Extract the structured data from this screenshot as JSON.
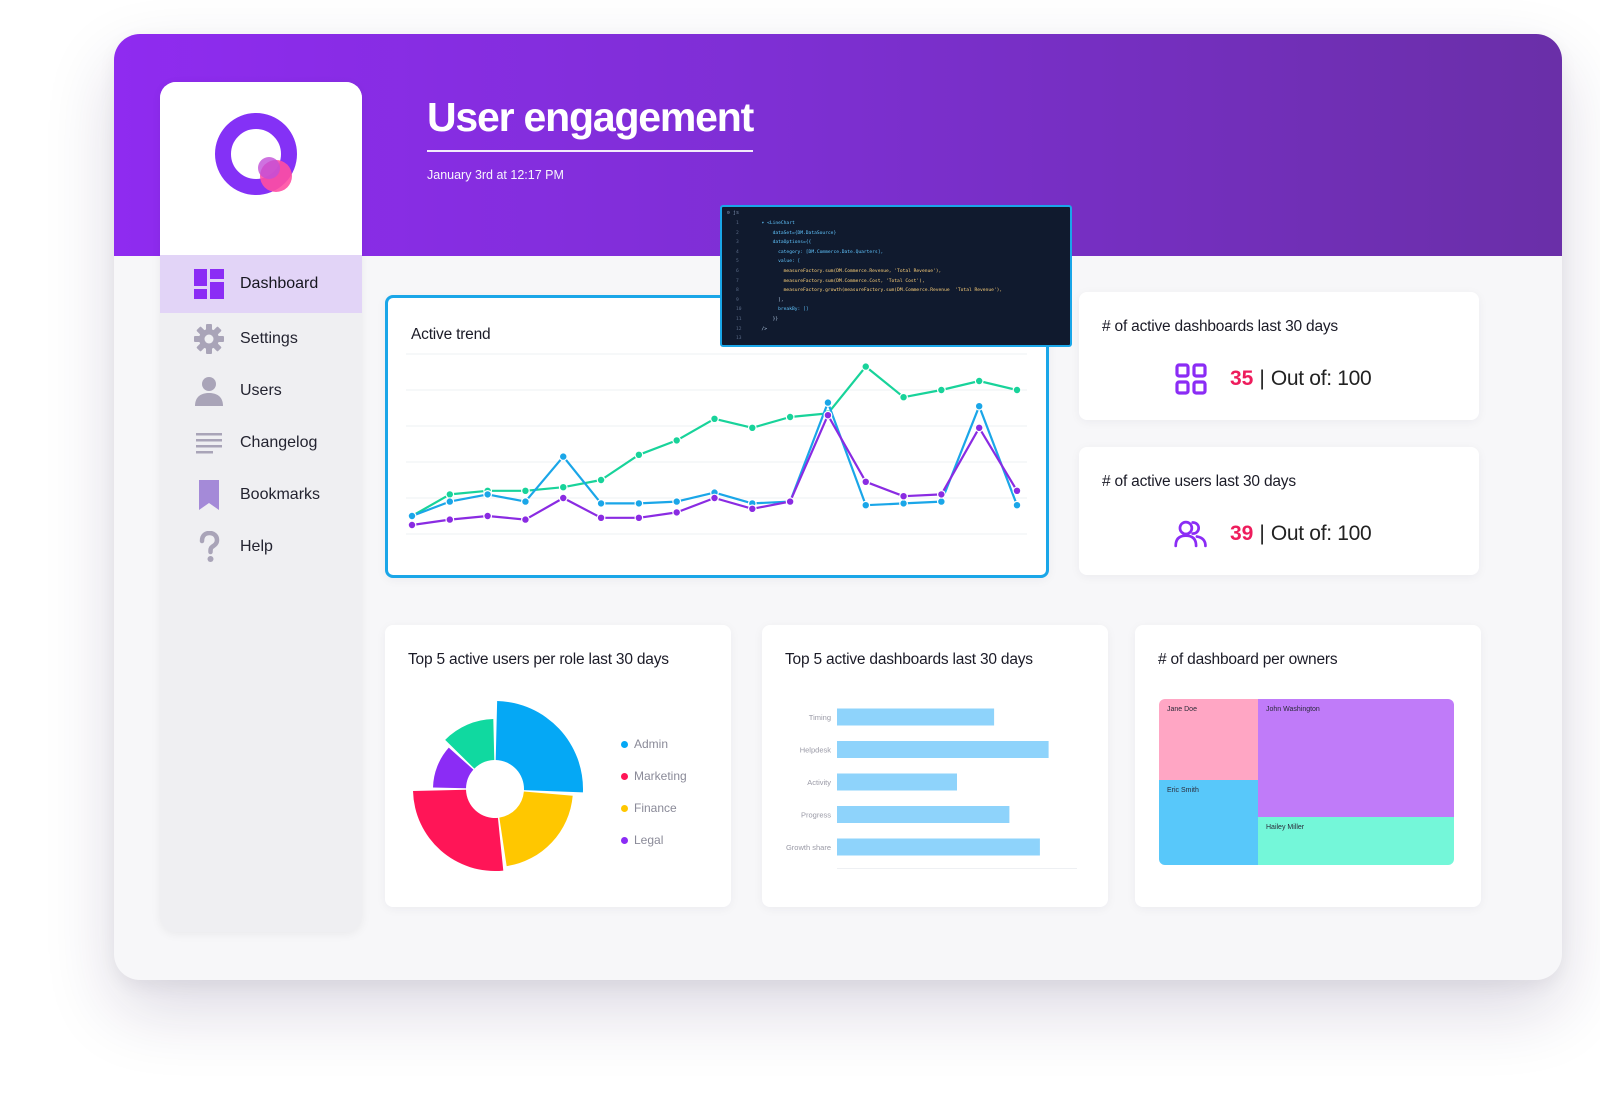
{
  "header": {
    "title": "User engagement",
    "subtitle": "January 3rd at 12:17 PM"
  },
  "sidebar": {
    "items": [
      {
        "label": "Dashboard",
        "icon": "dashboard-grid-icon",
        "active": true
      },
      {
        "label": "Settings",
        "icon": "gear-icon"
      },
      {
        "label": "Users",
        "icon": "user-icon"
      },
      {
        "label": "Changelog",
        "icon": "lines-icon"
      },
      {
        "label": "Bookmarks",
        "icon": "bookmark-icon"
      },
      {
        "label": "Help",
        "icon": "question-icon"
      }
    ]
  },
  "colors": {
    "brand_purple": "#8f2bf0",
    "accent_blue": "#1aa6e8",
    "highlight_pink": "#ee1c5c",
    "nav_active_bg": "#e2d4f7"
  },
  "code": {
    "tab": "⚙ js",
    "lines": [
      {
        "n": "1",
        "text": "  ▾ <LineChart"
      },
      {
        "n": "2",
        "text": "      dataSet={DM.DataSource}"
      },
      {
        "n": "3",
        "text": "      dataOptions={{"
      },
      {
        "n": "4",
        "text": "        category: [DM.Commerce.Date.Quarters],"
      },
      {
        "n": "5",
        "text": "        value: ["
      },
      {
        "n": "6",
        "text": "          measureFactory.sum(DM.Commerce.Revenue, 'Total Revenue'),"
      },
      {
        "n": "7",
        "text": "          measureFactory.sum(DM.Commerce.Cost, 'Total Cost'),"
      },
      {
        "n": "8",
        "text": "          measureFactory.growth(measureFactory.sum(DM.Commerce.Revenue  'Total Revenue'),"
      },
      {
        "n": "9",
        "text": "        ],"
      },
      {
        "n": "10",
        "text": "        breakBy: []"
      },
      {
        "n": "11",
        "text": "      }}"
      },
      {
        "n": "12",
        "text": "  />"
      },
      {
        "n": "13",
        "text": ""
      }
    ]
  },
  "cards": {
    "trend_title": "Active trend",
    "dashboards_title": "# of active dashboards last 30 days",
    "dashboards_value": "35",
    "dashboards_sep": "|",
    "dashboards_out_of": "Out of: 100",
    "users_title": "# of active users last 30 days",
    "users_value": "39",
    "users_sep": "|",
    "users_out_of": "Out of: 100",
    "roles_title": "Top 5 active users per role last 30 days",
    "top_dash_title": "Top 5 active dashboards  last 30 days",
    "owners_title": "# of dashboard per owners"
  },
  "chart_data": [
    {
      "type": "line",
      "title": "Active trend",
      "x": [
        1,
        2,
        3,
        4,
        5,
        6,
        7,
        8,
        9,
        10,
        11,
        12,
        13,
        14,
        15,
        16,
        17
      ],
      "ylim": [
        0,
        100
      ],
      "series": [
        {
          "color": "#18d39a",
          "values": [
            10,
            22,
            24,
            24,
            26,
            30,
            44,
            52,
            64,
            59,
            65,
            67,
            93,
            76,
            80,
            85,
            80
          ]
        },
        {
          "color": "#1aa6e8",
          "values": [
            10,
            18,
            22,
            18,
            43,
            17,
            17,
            18,
            23,
            17,
            18,
            73,
            16,
            17,
            18,
            71,
            16
          ]
        },
        {
          "color": "#8a2be2",
          "values": [
            5,
            8,
            10,
            8,
            20,
            9,
            9,
            12,
            20,
            14,
            18,
            66,
            29,
            21,
            22,
            59,
            24
          ]
        }
      ]
    },
    {
      "type": "pie",
      "title": "Top 5 active users per role last 30 days",
      "legend": [
        "Admin",
        "Marketing",
        "Finance",
        "Legal"
      ],
      "slices": [
        {
          "label": "Admin",
          "value": 26,
          "color": "#05a8f5"
        },
        {
          "label": "Finance",
          "value": 22,
          "color": "#ffc700"
        },
        {
          "label": "Marketing",
          "value": 27,
          "color": "#ff1557"
        },
        {
          "label": "Legal",
          "value": 12,
          "color": "#8b2cf5"
        },
        {
          "label": "",
          "value": 13,
          "color": "#10d9a0"
        }
      ]
    },
    {
      "type": "bar",
      "title": "Top 5 active dashboards  last 30 days",
      "orientation": "horizontal",
      "categories": [
        "Timing",
        "Helpdesk",
        "Activity",
        "Progress",
        "Growth share"
      ],
      "values": [
        72,
        97,
        55,
        79,
        93
      ],
      "xlim": [
        0,
        110
      ],
      "color": "#8ed3fb"
    },
    {
      "type": "heatmap",
      "title": "# of dashboard per owners",
      "cells": [
        {
          "label": "Jane Doe",
          "color": "#ffa6c4"
        },
        {
          "label": "John Washington",
          "color": "#c07bf9"
        },
        {
          "label": "Eric Smith",
          "color": "#58c8fa"
        },
        {
          "label": "Hailey Miller",
          "color": "#74f7d9"
        }
      ]
    }
  ]
}
